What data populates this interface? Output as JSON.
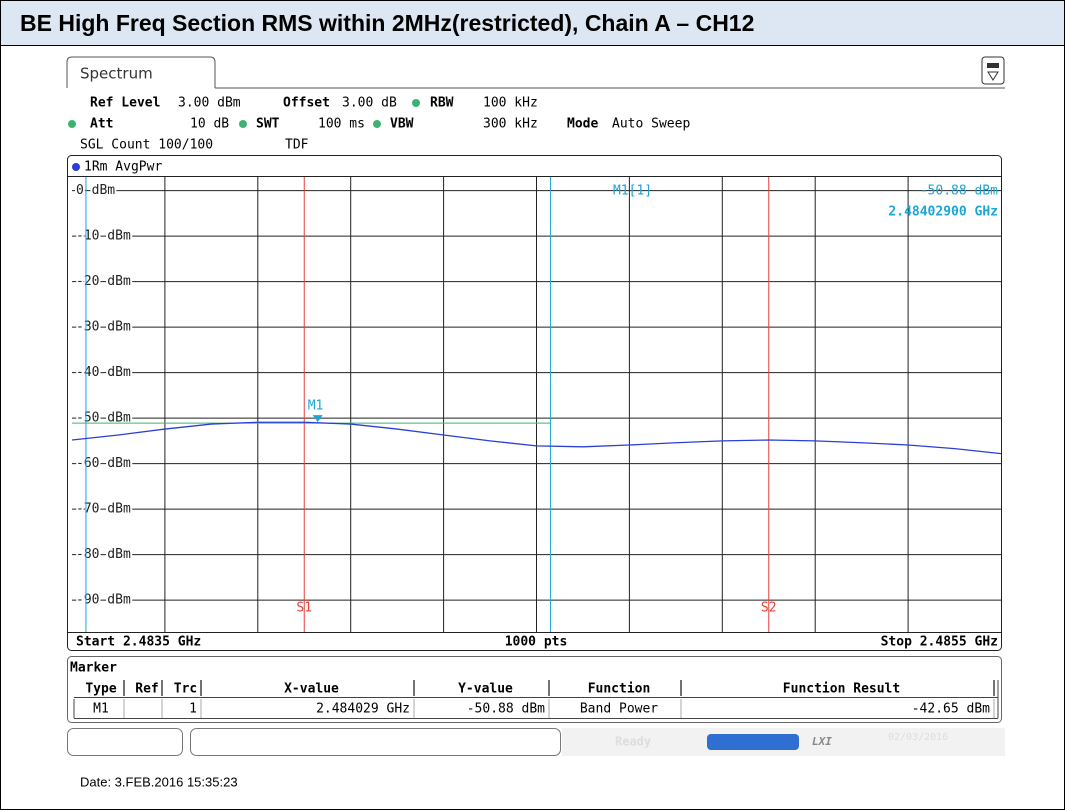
{
  "header": {
    "title": "BE High Freq Section RMS  within 2MHz(restricted), Chain A – CH12"
  },
  "tab": "Spectrum",
  "settings": {
    "ref_level": {
      "name": "Ref Level",
      "value": "3.00 dBm"
    },
    "offset": {
      "name": "Offset",
      "value": "3.00 dB"
    },
    "rbw": {
      "name": "RBW",
      "value": "100 kHz"
    },
    "att": {
      "name": "Att",
      "value": "10 dB"
    },
    "swt": {
      "name": "SWT",
      "value": "100 ms"
    },
    "vbw": {
      "name": "VBW",
      "value": "300 kHz"
    },
    "mode": {
      "name": "Mode",
      "value": "Auto Sweep"
    },
    "count": "SGL Count 100/100",
    "tdf": "TDF"
  },
  "chart_data": {
    "type": "line",
    "grid": true,
    "xlim": [
      2.4835,
      2.4855
    ],
    "ylim": [
      -97,
      3
    ],
    "yticks": [
      {
        "value": 0,
        "label": "0 dBm"
      },
      {
        "value": -10,
        "label": "-10 dBm"
      },
      {
        "value": -20,
        "label": "-20 dBm"
      },
      {
        "value": -30,
        "label": "-30 dBm"
      },
      {
        "value": -40,
        "label": "-40 dBm"
      },
      {
        "value": -50,
        "label": "-50 dBm"
      },
      {
        "value": -60,
        "label": "-60 dBm"
      },
      {
        "value": -70,
        "label": "-70 dBm"
      },
      {
        "value": -80,
        "label": "-80 dBm"
      },
      {
        "value": -90,
        "label": "-90 dBm"
      }
    ],
    "x": [
      2.4835,
      2.4836,
      2.4837,
      2.4838,
      2.4839,
      2.484,
      2.4841,
      2.4842,
      2.4843,
      2.4844,
      2.4845,
      2.4846,
      2.4847,
      2.4848,
      2.4849,
      2.485,
      2.4851,
      2.4852,
      2.4853,
      2.4854,
      2.4855
    ],
    "series": [
      {
        "name": "1Rm AvgPwr",
        "color": "#2a3fd6",
        "values": [
          -54.8,
          -53.7,
          -52.4,
          -51.3,
          -50.9,
          -50.9,
          -51.3,
          -52.4,
          -53.7,
          -55.0,
          -56.1,
          -56.3,
          -55.9,
          -55.4,
          -55.0,
          -54.8,
          -55.0,
          -55.4,
          -55.9,
          -56.7,
          -57.8
        ]
      }
    ],
    "start_label": "Start 2.4835 GHz",
    "points_label": "1000 pts",
    "stop_label": "Stop 2.4855 GHz",
    "span_lines": {
      "color": "#e8413c",
      "lines": [
        {
          "label": "S1",
          "x": 2.484
        },
        {
          "label": "S2",
          "x": 2.485
        }
      ]
    },
    "channel_lines": {
      "color": "#1ba6d6",
      "x": [
        2.48353,
        2.48453
      ]
    },
    "level_line": {
      "color": "#3cb371",
      "y": -51.1
    },
    "marker": {
      "label": "M1",
      "readout": "M1[1]",
      "x": 2.484029,
      "y": -50.88,
      "value_label": "-50.88 dBm",
      "x_label": "2.48402900 GHz",
      "color": "#1ba6d6"
    }
  },
  "marker_table": {
    "title": "Marker",
    "columns": [
      "Type",
      "Ref",
      "Trc",
      "X-value",
      "Y-value",
      "Function",
      "Function Result"
    ],
    "rows": [
      [
        "M1",
        null,
        "1",
        "2.484029 GHz",
        "-50.88 dBm",
        "Band Power",
        "-42.65 dBm"
      ]
    ]
  },
  "status": {
    "state": "Ready",
    "lxi": "LXI",
    "date": "02/03/2016"
  },
  "footer": "Date: 3.FEB.2016 15:35:23"
}
